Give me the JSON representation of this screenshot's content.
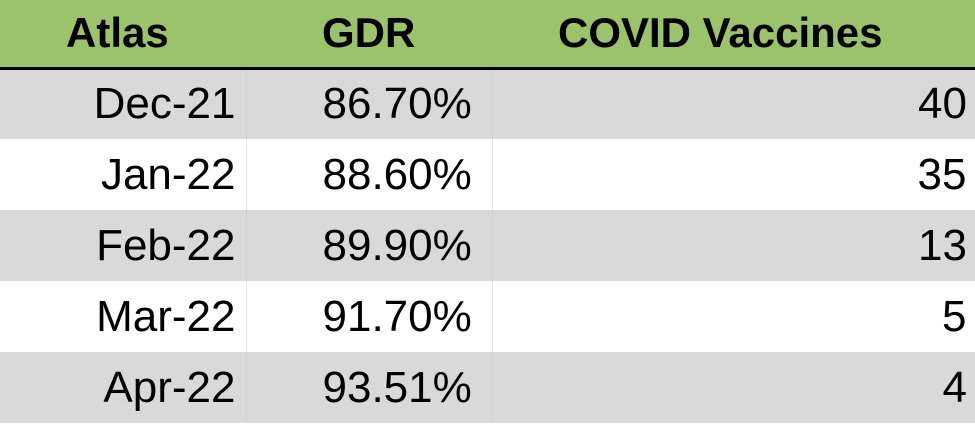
{
  "headers": {
    "atlas": "Atlas",
    "gdr": "GDR",
    "vaccines": "COVID Vaccines"
  },
  "rows": [
    {
      "month": "Dec-21",
      "gdr": "86.70%",
      "vaccines": "40"
    },
    {
      "month": "Jan-22",
      "gdr": "88.60%",
      "vaccines": "35"
    },
    {
      "month": "Feb-22",
      "gdr": "89.90%",
      "vaccines": "13"
    },
    {
      "month": "Mar-22",
      "gdr": "91.70%",
      "vaccines": "5"
    },
    {
      "month": "Apr-22",
      "gdr": "93.51%",
      "vaccines": "4"
    }
  ],
  "colors": {
    "header_bg": "#9bc46a",
    "band_shaded": "#d9d9d9",
    "band_plain": "#ffffff"
  }
}
